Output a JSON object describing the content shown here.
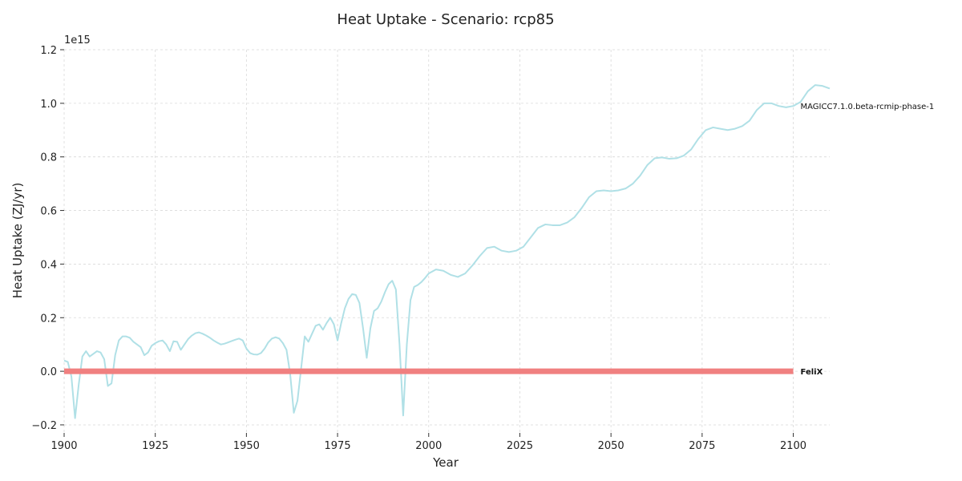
{
  "chart_data": {
    "type": "line",
    "title": "Heat Uptake - Scenario: rcp85",
    "xlabel": "Year",
    "ylabel": "Heat Uptake (ZJ/yr)",
    "y_offset_label": "1e15",
    "xlim": [
      1900,
      2110
    ],
    "ylim": [
      -0.23,
      1.2
    ],
    "y_scale_factor": 1000000000000000.0,
    "x_ticks": [
      1900,
      1925,
      1950,
      1975,
      2000,
      2025,
      2050,
      2075,
      2100
    ],
    "x_tick_labels": [
      "1900",
      "1925",
      "1950",
      "1975",
      "2000",
      "2025",
      "2050",
      "2075",
      "2100"
    ],
    "y_ticks": [
      -0.2,
      0.0,
      0.2,
      0.4,
      0.6,
      0.8,
      1.0,
      1.2
    ],
    "y_tick_labels": [
      "−0.2",
      "0.0",
      "0.2",
      "0.4",
      "0.6",
      "0.8",
      "1.0",
      "1.2"
    ],
    "grid": true,
    "series": [
      {
        "name": "MAGICC7.1.0.beta-rcmip-phase-1",
        "color": "#b0e0e6",
        "points": [
          [
            1900,
            0.04
          ],
          [
            1901,
            0.035
          ],
          [
            1902,
            -0.02
          ],
          [
            1903,
            -0.175
          ],
          [
            1904,
            -0.05
          ],
          [
            1905,
            0.055
          ],
          [
            1906,
            0.075
          ],
          [
            1907,
            0.055
          ],
          [
            1908,
            0.065
          ],
          [
            1909,
            0.075
          ],
          [
            1910,
            0.07
          ],
          [
            1911,
            0.045
          ],
          [
            1912,
            -0.055
          ],
          [
            1913,
            -0.045
          ],
          [
            1914,
            0.06
          ],
          [
            1915,
            0.115
          ],
          [
            1916,
            0.13
          ],
          [
            1917,
            0.13
          ],
          [
            1918,
            0.125
          ],
          [
            1919,
            0.11
          ],
          [
            1920,
            0.1
          ],
          [
            1921,
            0.09
          ],
          [
            1922,
            0.06
          ],
          [
            1923,
            0.07
          ],
          [
            1924,
            0.095
          ],
          [
            1925,
            0.105
          ],
          [
            1926,
            0.112
          ],
          [
            1927,
            0.115
          ],
          [
            1928,
            0.1
          ],
          [
            1929,
            0.075
          ],
          [
            1930,
            0.112
          ],
          [
            1931,
            0.11
          ],
          [
            1932,
            0.08
          ],
          [
            1933,
            0.1
          ],
          [
            1934,
            0.12
          ],
          [
            1935,
            0.133
          ],
          [
            1936,
            0.142
          ],
          [
            1937,
            0.145
          ],
          [
            1938,
            0.14
          ],
          [
            1939,
            0.133
          ],
          [
            1940,
            0.125
          ],
          [
            1941,
            0.115
          ],
          [
            1942,
            0.107
          ],
          [
            1943,
            0.1
          ],
          [
            1944,
            0.103
          ],
          [
            1945,
            0.108
          ],
          [
            1946,
            0.113
          ],
          [
            1947,
            0.118
          ],
          [
            1948,
            0.122
          ],
          [
            1949,
            0.115
          ],
          [
            1950,
            0.085
          ],
          [
            1951,
            0.068
          ],
          [
            1952,
            0.063
          ],
          [
            1953,
            0.062
          ],
          [
            1954,
            0.068
          ],
          [
            1955,
            0.085
          ],
          [
            1956,
            0.108
          ],
          [
            1957,
            0.122
          ],
          [
            1958,
            0.127
          ],
          [
            1959,
            0.122
          ],
          [
            1960,
            0.105
          ],
          [
            1961,
            0.08
          ],
          [
            1962,
            -0.01
          ],
          [
            1963,
            -0.155
          ],
          [
            1964,
            -0.11
          ],
          [
            1965,
            0.01
          ],
          [
            1966,
            0.13
          ],
          [
            1967,
            0.11
          ],
          [
            1968,
            0.14
          ],
          [
            1969,
            0.17
          ],
          [
            1970,
            0.175
          ],
          [
            1971,
            0.155
          ],
          [
            1972,
            0.18
          ],
          [
            1973,
            0.2
          ],
          [
            1974,
            0.175
          ],
          [
            1975,
            0.115
          ],
          [
            1976,
            0.18
          ],
          [
            1977,
            0.235
          ],
          [
            1978,
            0.27
          ],
          [
            1979,
            0.288
          ],
          [
            1980,
            0.285
          ],
          [
            1981,
            0.255
          ],
          [
            1982,
            0.16
          ],
          [
            1983,
            0.05
          ],
          [
            1984,
            0.16
          ],
          [
            1985,
            0.225
          ],
          [
            1986,
            0.235
          ],
          [
            1987,
            0.26
          ],
          [
            1988,
            0.295
          ],
          [
            1989,
            0.325
          ],
          [
            1990,
            0.338
          ],
          [
            1991,
            0.305
          ],
          [
            1992,
            0.1
          ],
          [
            1993,
            -0.165
          ],
          [
            1994,
            0.1
          ],
          [
            1995,
            0.265
          ],
          [
            1996,
            0.315
          ],
          [
            1997,
            0.322
          ],
          [
            1998,
            0.333
          ],
          [
            1999,
            0.348
          ],
          [
            2000,
            0.365
          ],
          [
            2002,
            0.38
          ],
          [
            2004,
            0.375
          ],
          [
            2006,
            0.36
          ],
          [
            2008,
            0.352
          ],
          [
            2010,
            0.365
          ],
          [
            2012,
            0.395
          ],
          [
            2014,
            0.43
          ],
          [
            2016,
            0.46
          ],
          [
            2018,
            0.465
          ],
          [
            2020,
            0.45
          ],
          [
            2022,
            0.445
          ],
          [
            2024,
            0.45
          ],
          [
            2026,
            0.465
          ],
          [
            2028,
            0.5
          ],
          [
            2030,
            0.535
          ],
          [
            2032,
            0.548
          ],
          [
            2034,
            0.545
          ],
          [
            2036,
            0.545
          ],
          [
            2038,
            0.555
          ],
          [
            2040,
            0.575
          ],
          [
            2042,
            0.61
          ],
          [
            2044,
            0.65
          ],
          [
            2046,
            0.672
          ],
          [
            2048,
            0.675
          ],
          [
            2050,
            0.672
          ],
          [
            2052,
            0.675
          ],
          [
            2054,
            0.682
          ],
          [
            2056,
            0.7
          ],
          [
            2058,
            0.73
          ],
          [
            2060,
            0.77
          ],
          [
            2062,
            0.795
          ],
          [
            2064,
            0.798
          ],
          [
            2066,
            0.793
          ],
          [
            2068,
            0.795
          ],
          [
            2070,
            0.805
          ],
          [
            2072,
            0.828
          ],
          [
            2074,
            0.868
          ],
          [
            2076,
            0.9
          ],
          [
            2078,
            0.91
          ],
          [
            2080,
            0.905
          ],
          [
            2082,
            0.9
          ],
          [
            2084,
            0.905
          ],
          [
            2086,
            0.915
          ],
          [
            2088,
            0.935
          ],
          [
            2090,
            0.975
          ],
          [
            2092,
            1.0
          ],
          [
            2094,
            1.0
          ],
          [
            2096,
            0.99
          ],
          [
            2098,
            0.985
          ],
          [
            2100,
            0.99
          ],
          [
            2102,
            1.005
          ],
          [
            2104,
            1.045
          ],
          [
            2106,
            1.068
          ],
          [
            2108,
            1.065
          ],
          [
            2110,
            1.055
          ]
        ]
      },
      {
        "name": "FeliX",
        "color": "#f08080",
        "points": [
          [
            1900,
            0.0
          ],
          [
            2100,
            0.0
          ]
        ]
      }
    ]
  }
}
